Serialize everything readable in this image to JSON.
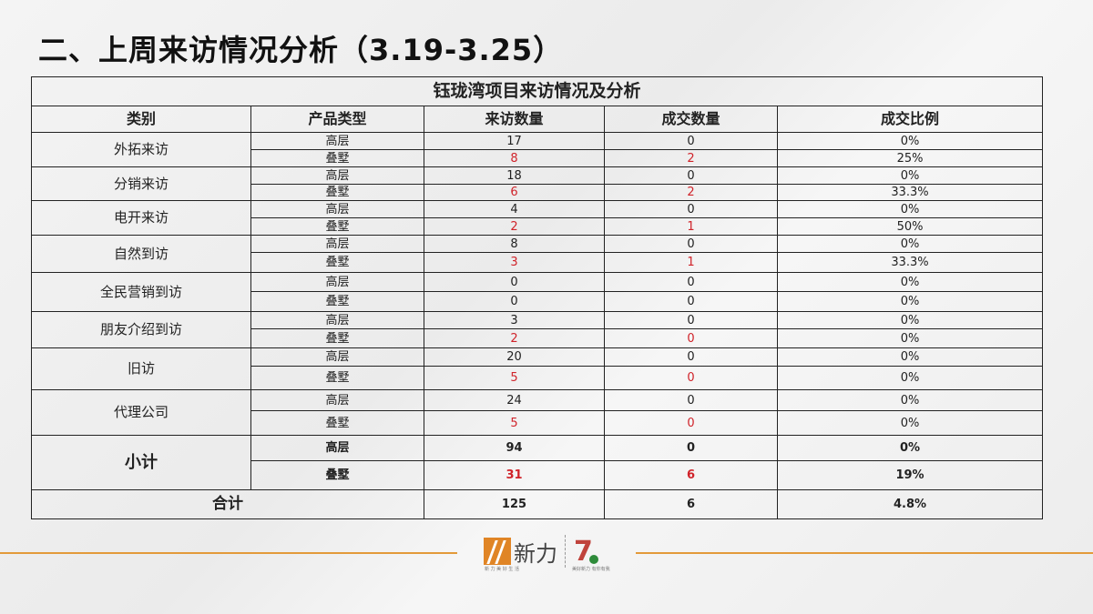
{
  "page_title": "二、上周来访情况分析（3.19-3.25）",
  "table": {
    "caption": "钰珑湾项目来访情况及分析",
    "headers": [
      "类别",
      "产品类型",
      "来访数量",
      "成交数量",
      "成交比例"
    ],
    "highlight_color": "#d0232a",
    "groups": [
      {
        "category": "外拓来访",
        "rows": [
          {
            "type": "高层",
            "visits": "17",
            "deals": "0",
            "ratio": "0%",
            "visits_red": false,
            "deals_red": false
          },
          {
            "type": "叠墅",
            "visits": "8",
            "deals": "2",
            "ratio": "25%",
            "visits_red": true,
            "deals_red": true
          }
        ]
      },
      {
        "category": "分销来访",
        "rows": [
          {
            "type": "高层",
            "visits": "18",
            "deals": "0",
            "ratio": "0%",
            "visits_red": false,
            "deals_red": false
          },
          {
            "type": "叠墅",
            "visits": "6",
            "deals": "2",
            "ratio": "33.3%",
            "visits_red": true,
            "deals_red": true
          }
        ]
      },
      {
        "category": "电开来访",
        "rows": [
          {
            "type": "高层",
            "visits": "4",
            "deals": "0",
            "ratio": "0%",
            "visits_red": false,
            "deals_red": false
          },
          {
            "type": "叠墅",
            "visits": "2",
            "deals": "1",
            "ratio": "50%",
            "visits_red": true,
            "deals_red": true
          }
        ]
      },
      {
        "category": "自然到访",
        "rows": [
          {
            "type": "高层",
            "visits": "8",
            "deals": "0",
            "ratio": "0%",
            "visits_red": false,
            "deals_red": false
          },
          {
            "type": "叠墅",
            "visits": "3",
            "deals": "1",
            "ratio": "33.3%",
            "visits_red": true,
            "deals_red": true
          }
        ]
      },
      {
        "category": "全民营销到访",
        "rows": [
          {
            "type": "高层",
            "visits": "0",
            "deals": "0",
            "ratio": "0%",
            "visits_red": false,
            "deals_red": false
          },
          {
            "type": "叠墅",
            "visits": "0",
            "deals": "0",
            "ratio": "0%",
            "visits_red": false,
            "deals_red": false
          }
        ]
      },
      {
        "category": "朋友介绍到访",
        "rows": [
          {
            "type": "高层",
            "visits": "3",
            "deals": "0",
            "ratio": "0%",
            "visits_red": false,
            "deals_red": false
          },
          {
            "type": "叠墅",
            "visits": "2",
            "deals": "0",
            "ratio": "0%",
            "visits_red": true,
            "deals_red": true
          }
        ]
      },
      {
        "category": "旧访",
        "rows": [
          {
            "type": "高层",
            "visits": "20",
            "deals": "0",
            "ratio": "0%",
            "visits_red": false,
            "deals_red": false
          },
          {
            "type": "叠墅",
            "visits": "5",
            "deals": "0",
            "ratio": "0%",
            "visits_red": true,
            "deals_red": true
          }
        ]
      },
      {
        "category": "代理公司",
        "rows": [
          {
            "type": "高层",
            "visits": "24",
            "deals": "0",
            "ratio": "0%",
            "visits_red": false,
            "deals_red": false
          },
          {
            "type": "叠墅",
            "visits": "5",
            "deals": "0",
            "ratio": "0%",
            "visits_red": true,
            "deals_red": true
          }
        ]
      },
      {
        "category": "小计",
        "subtotal": true,
        "rows": [
          {
            "type": "高层",
            "visits": "94",
            "deals": "0",
            "ratio": "0%",
            "visits_red": false,
            "deals_red": false
          },
          {
            "type": "叠墅",
            "visits": "31",
            "deals": "6",
            "ratio": "19%",
            "visits_red": true,
            "deals_red": true
          }
        ]
      }
    ],
    "total": {
      "label": "合计",
      "visits": "125",
      "deals": "6",
      "ratio": "4.8%"
    }
  },
  "footer": {
    "brand": "新力",
    "logo_tagline": "新 力 美 好 生 活",
    "second_logo_tagline": "美好新力 有你有我"
  }
}
